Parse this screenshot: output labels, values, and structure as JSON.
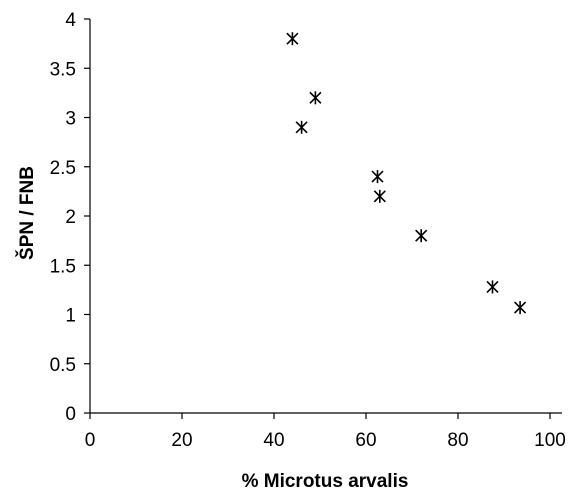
{
  "chart_data": {
    "type": "scatter",
    "title": "",
    "xlabel": "% Microtus arvalis",
    "ylabel": "ŠPN / FNB",
    "xlim": [
      0,
      100
    ],
    "ylim": [
      0,
      4
    ],
    "xticks": [
      0,
      20,
      40,
      60,
      80,
      100
    ],
    "yticks": [
      0,
      0.5,
      1,
      1.5,
      2,
      2.5,
      3,
      3.5,
      4
    ],
    "xtick_labels": [
      "0",
      "20",
      "40",
      "60",
      "80",
      "100"
    ],
    "ytick_labels": [
      "0",
      "0.5",
      "1",
      "1.5",
      "2",
      "2.5",
      "3",
      "3.5",
      "4"
    ],
    "grid": false,
    "marker": "asterisk",
    "points": [
      {
        "x": 44.0,
        "y": 3.8
      },
      {
        "x": 49.0,
        "y": 3.2
      },
      {
        "x": 46.0,
        "y": 2.9
      },
      {
        "x": 62.5,
        "y": 2.4
      },
      {
        "x": 63.0,
        "y": 2.2
      },
      {
        "x": 72.0,
        "y": 1.8
      },
      {
        "x": 87.5,
        "y": 1.28
      },
      {
        "x": 93.5,
        "y": 1.07
      }
    ]
  }
}
